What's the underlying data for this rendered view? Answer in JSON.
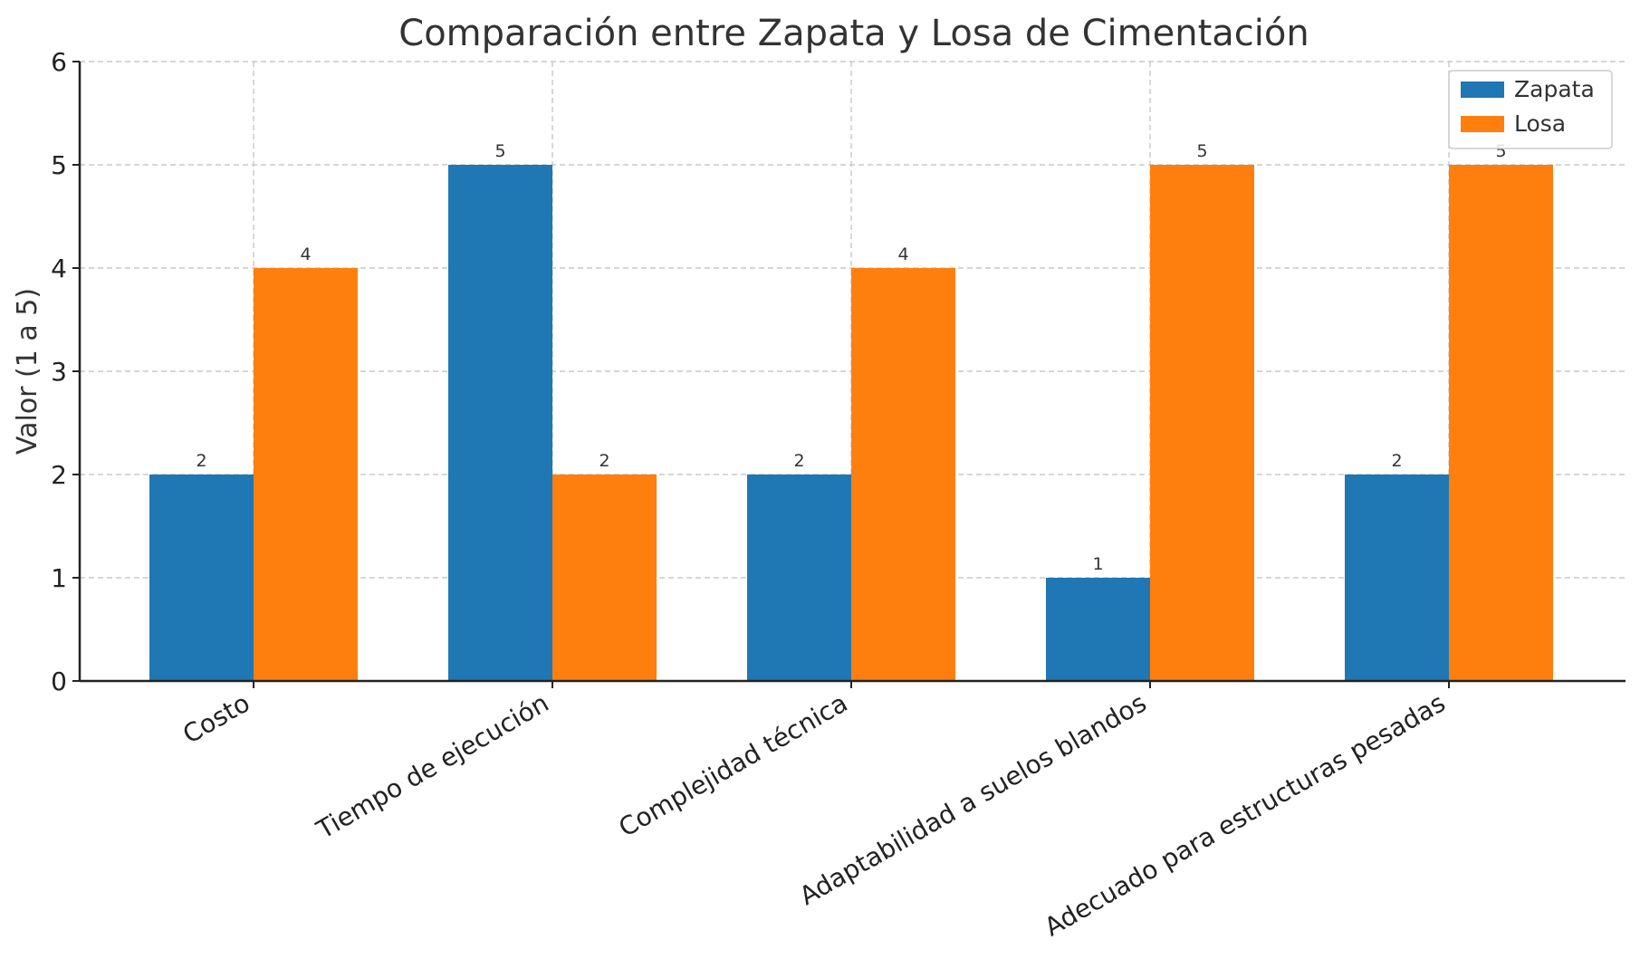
{
  "chart_data": {
    "type": "bar",
    "title": "Comparación entre Zapata y Losa de Cimentación",
    "xlabel": "",
    "ylabel": "Valor (1 a 5)",
    "ylim": [
      0,
      6
    ],
    "yticks": [
      "0",
      "1",
      "2",
      "3",
      "4",
      "5",
      "6"
    ],
    "grid": true,
    "legend_position": "top-right",
    "categories": [
      "Costo",
      "Tiempo de ejecución",
      "Complejidad técnica",
      "Adaptabilidad a suelos blandos",
      "Adecuado para estructuras pesadas"
    ],
    "series": [
      {
        "name": "Zapata",
        "color": "#1f77b4",
        "values": [
          2,
          5,
          2,
          1,
          2
        ]
      },
      {
        "name": "Losa",
        "color": "#ff7f0e",
        "values": [
          4,
          2,
          4,
          5,
          5
        ]
      }
    ]
  }
}
